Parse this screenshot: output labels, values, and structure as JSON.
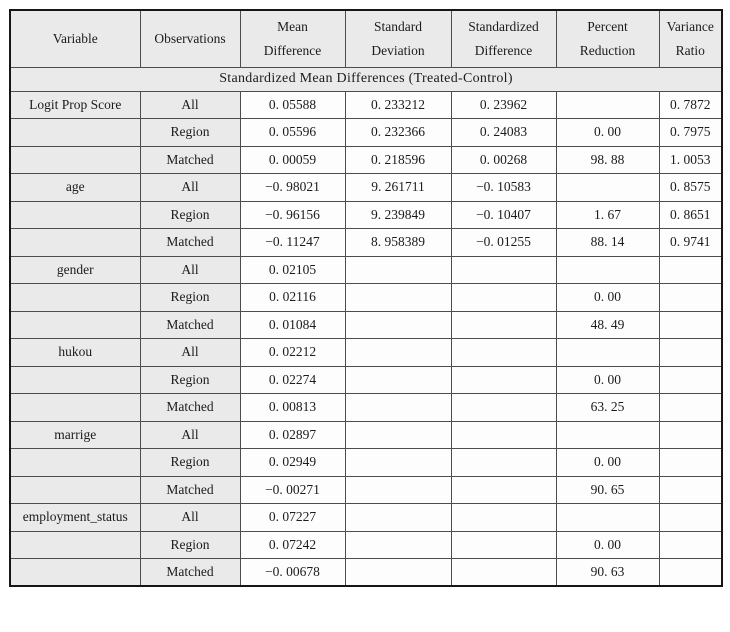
{
  "colors": {
    "shaded-bg": "#eaeaea",
    "plain-bg": "#fdfdfd",
    "inner-border": "#4d4d4d",
    "outer-border": "#161616",
    "text-color": "#1b1b1b",
    "page-bg": "#ffffff"
  },
  "table": {
    "title": "Standardized Mean Differences (Treated-Control)",
    "column_headers": [
      {
        "line1": "Variable",
        "line2": ""
      },
      {
        "line1": "Observations",
        "line2": ""
      },
      {
        "line1": "Mean",
        "line2": "Difference"
      },
      {
        "line1": "Standard",
        "line2": "Deviation"
      },
      {
        "line1": "Standardized",
        "line2": "Difference"
      },
      {
        "line1": "Percent",
        "line2": "Reduction"
      },
      {
        "line1": "Variance",
        "line2": "Ratio"
      }
    ],
    "column_keys": [
      "variable",
      "observations",
      "mean_difference",
      "standard_deviation",
      "standardized_difference",
      "percent_reduction",
      "variance_ratio"
    ],
    "rows": [
      {
        "variable": "Logit Prop Score",
        "observations": "All",
        "mean_difference": "0. 05588",
        "standard_deviation": "0. 233212",
        "standardized_difference": "0. 23962",
        "percent_reduction": "",
        "variance_ratio": "0. 7872"
      },
      {
        "variable": "",
        "observations": "Region",
        "mean_difference": "0. 05596",
        "standard_deviation": "0. 232366",
        "standardized_difference": "0. 24083",
        "percent_reduction": "0. 00",
        "variance_ratio": "0. 7975"
      },
      {
        "variable": "",
        "observations": "Matched",
        "mean_difference": "0. 00059",
        "standard_deviation": "0. 218596",
        "standardized_difference": "0. 00268",
        "percent_reduction": "98. 88",
        "variance_ratio": "1. 0053"
      },
      {
        "variable": "age",
        "observations": "All",
        "mean_difference": "−0. 98021",
        "standard_deviation": "9. 261711",
        "standardized_difference": "−0. 10583",
        "percent_reduction": "",
        "variance_ratio": "0. 8575"
      },
      {
        "variable": "",
        "observations": "Region",
        "mean_difference": "−0. 96156",
        "standard_deviation": "9. 239849",
        "standardized_difference": "−0. 10407",
        "percent_reduction": "1. 67",
        "variance_ratio": "0. 8651"
      },
      {
        "variable": "",
        "observations": "Matched",
        "mean_difference": "−0. 11247",
        "standard_deviation": "8. 958389",
        "standardized_difference": "−0. 01255",
        "percent_reduction": "88. 14",
        "variance_ratio": "0. 9741"
      },
      {
        "variable": "gender",
        "observations": "All",
        "mean_difference": "0. 02105",
        "standard_deviation": "",
        "standardized_difference": "",
        "percent_reduction": "",
        "variance_ratio": ""
      },
      {
        "variable": "",
        "observations": "Region",
        "mean_difference": "0. 02116",
        "standard_deviation": "",
        "standardized_difference": "",
        "percent_reduction": "0. 00",
        "variance_ratio": ""
      },
      {
        "variable": "",
        "observations": "Matched",
        "mean_difference": "0. 01084",
        "standard_deviation": "",
        "standardized_difference": "",
        "percent_reduction": "48. 49",
        "variance_ratio": ""
      },
      {
        "variable": "hukou",
        "observations": "All",
        "mean_difference": "0. 02212",
        "standard_deviation": "",
        "standardized_difference": "",
        "percent_reduction": "",
        "variance_ratio": ""
      },
      {
        "variable": "",
        "observations": "Region",
        "mean_difference": "0. 02274",
        "standard_deviation": "",
        "standardized_difference": "",
        "percent_reduction": "0. 00",
        "variance_ratio": ""
      },
      {
        "variable": "",
        "observations": "Matched",
        "mean_difference": "0. 00813",
        "standard_deviation": "",
        "standardized_difference": "",
        "percent_reduction": "63. 25",
        "variance_ratio": ""
      },
      {
        "variable": "marrige",
        "observations": "All",
        "mean_difference": "0. 02897",
        "standard_deviation": "",
        "standardized_difference": "",
        "percent_reduction": "",
        "variance_ratio": ""
      },
      {
        "variable": "",
        "observations": "Region",
        "mean_difference": "0. 02949",
        "standard_deviation": "",
        "standardized_difference": "",
        "percent_reduction": "0. 00",
        "variance_ratio": ""
      },
      {
        "variable": "",
        "observations": "Matched",
        "mean_difference": "−0. 00271",
        "standard_deviation": "",
        "standardized_difference": "",
        "percent_reduction": "90. 65",
        "variance_ratio": ""
      },
      {
        "variable": "employment_status",
        "observations": "All",
        "mean_difference": "0. 07227",
        "standard_deviation": "",
        "standardized_difference": "",
        "percent_reduction": "",
        "variance_ratio": ""
      },
      {
        "variable": "",
        "observations": "Region",
        "mean_difference": "0. 07242",
        "standard_deviation": "",
        "standardized_difference": "",
        "percent_reduction": "0. 00",
        "variance_ratio": ""
      },
      {
        "variable": "",
        "observations": "Matched",
        "mean_difference": "−0. 00678",
        "standard_deviation": "",
        "standardized_difference": "",
        "percent_reduction": "90. 63",
        "variance_ratio": ""
      }
    ]
  }
}
